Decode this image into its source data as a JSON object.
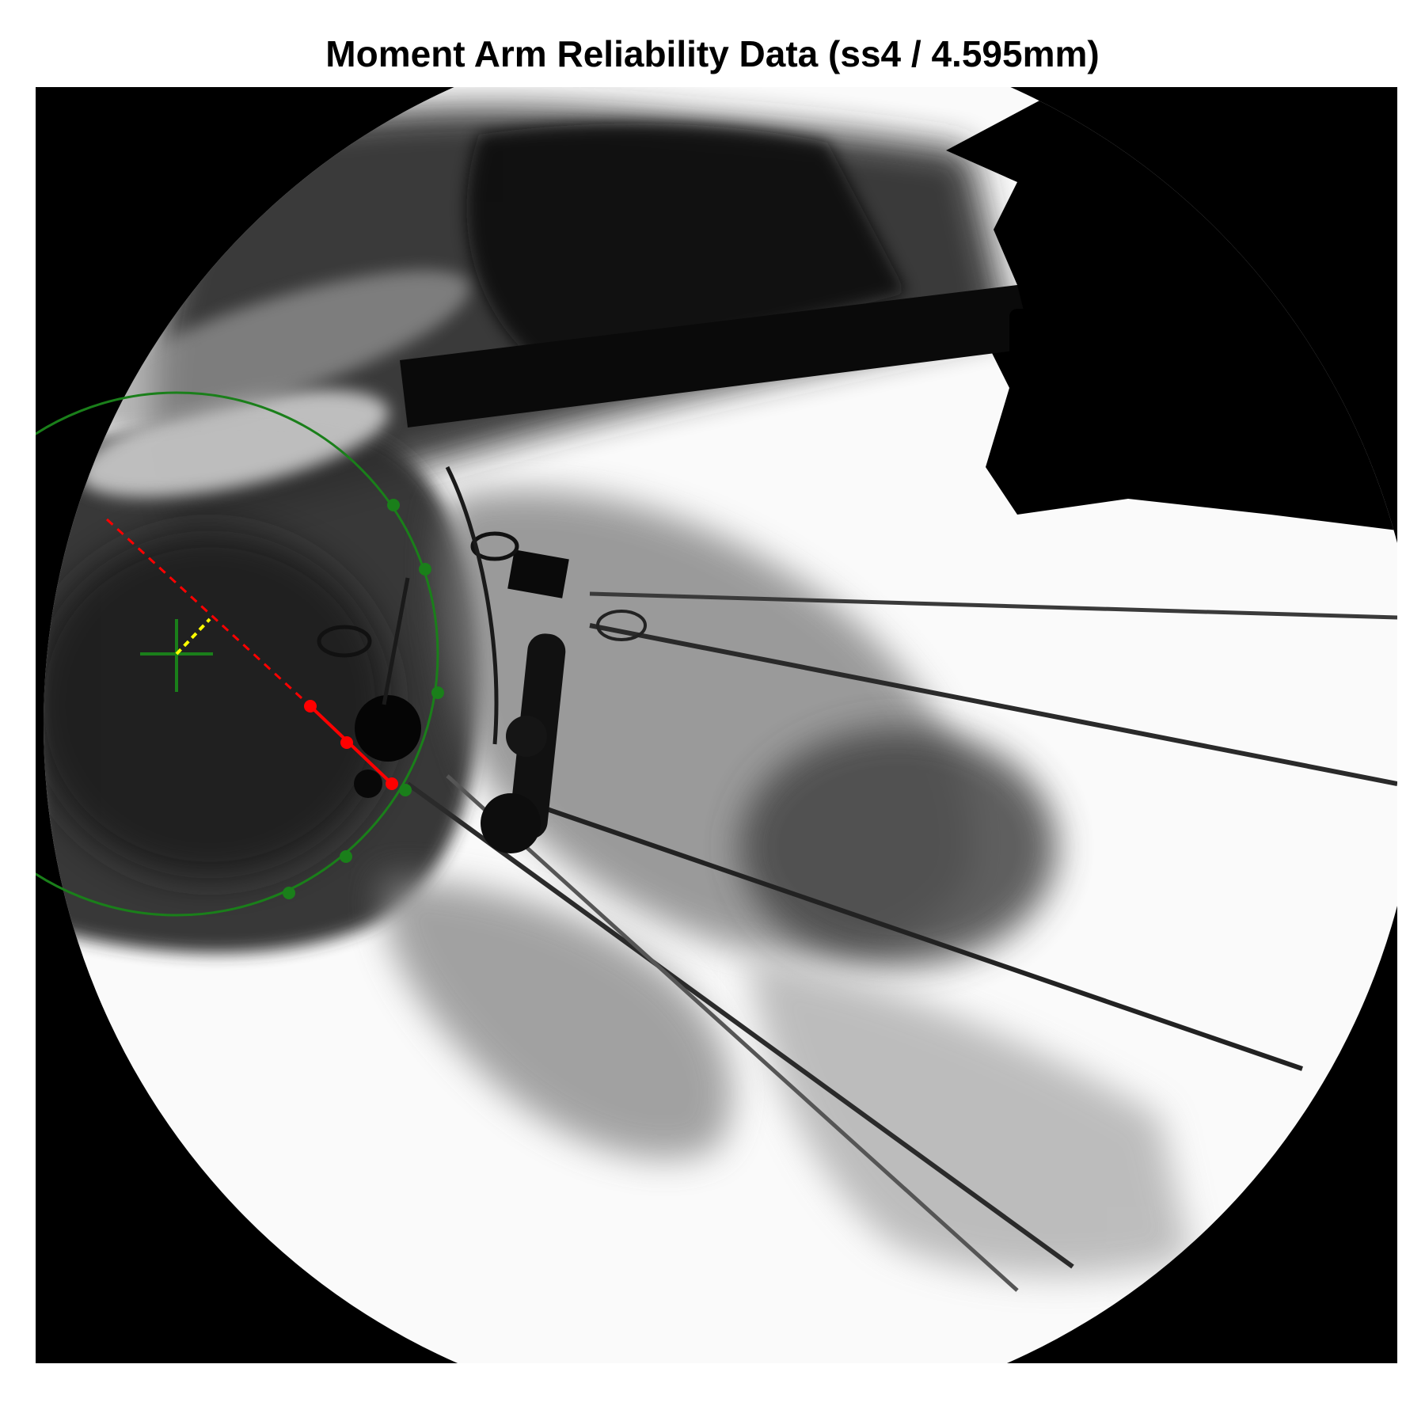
{
  "title": "Moment Arm Reliability Data (ss4 / 4.595mm)",
  "image": {
    "description_kind": "fluoroscopy",
    "annotations": {
      "circle_color": "#1a7f1a",
      "moment_arm_color": "#ff0000",
      "offset_color": "#ffff00",
      "center_marker": "crosshair-icon",
      "num_circle_points": 7,
      "num_moment_arm_points": 3
    }
  }
}
